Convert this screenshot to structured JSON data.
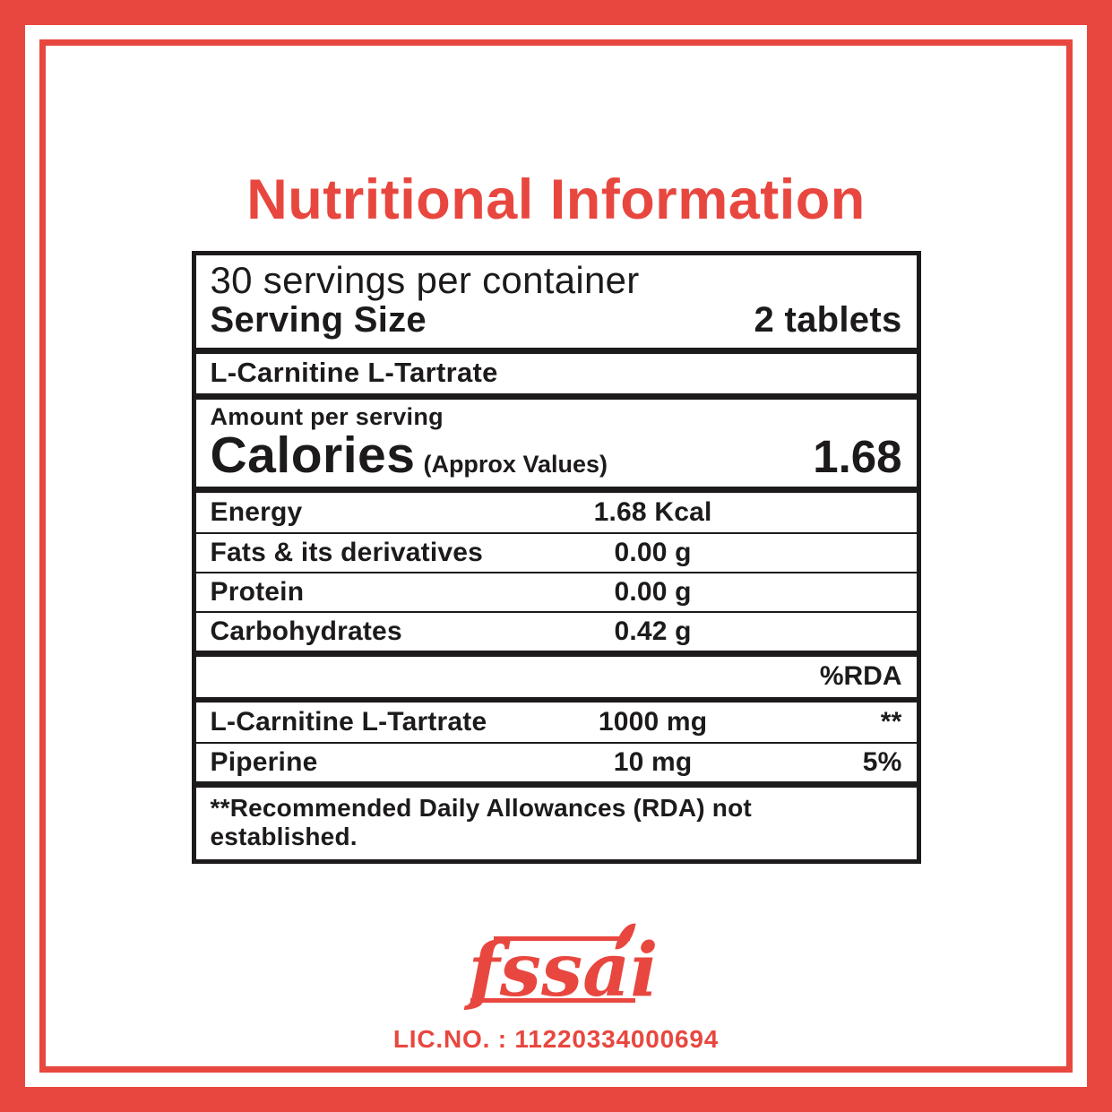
{
  "page": {
    "title": "Nutritional Information"
  },
  "table": {
    "servings_line": "30 servings per container",
    "serving_size_label": "Serving Size",
    "serving_size_value": "2 tablets",
    "product_name": "L-Carnitine L-Tartrate",
    "amount_per_serving_label": "Amount per serving",
    "calories_label": "Calories",
    "calories_note": "(Approx Values)",
    "calories_value": "1.68",
    "nutrient_rows": [
      {
        "label": "Energy",
        "value": "1.68 Kcal",
        "rda": ""
      },
      {
        "label": "Fats & its derivatives",
        "value": "0.00 g",
        "rda": ""
      },
      {
        "label": "Protein",
        "value": "0.00 g",
        "rda": ""
      },
      {
        "label": "Carbohydrates",
        "value": "0.42 g",
        "rda": ""
      }
    ],
    "rda_header": "%RDA",
    "supplement_rows": [
      {
        "label": "L-Carnitine L-Tartrate",
        "value": "1000 mg",
        "rda": "**"
      },
      {
        "label": "Piperine",
        "value": "10 mg",
        "rda": "5%"
      }
    ],
    "footnote": "**Recommended Daily Allowances (RDA) not established."
  },
  "footer": {
    "fssai_logo_text": "fssai",
    "license": "LIC.NO. : 11220334000694"
  },
  "colors": {
    "accent_red": "#e8473f",
    "text_black": "#1d1a1b",
    "background": "#ffffff"
  }
}
